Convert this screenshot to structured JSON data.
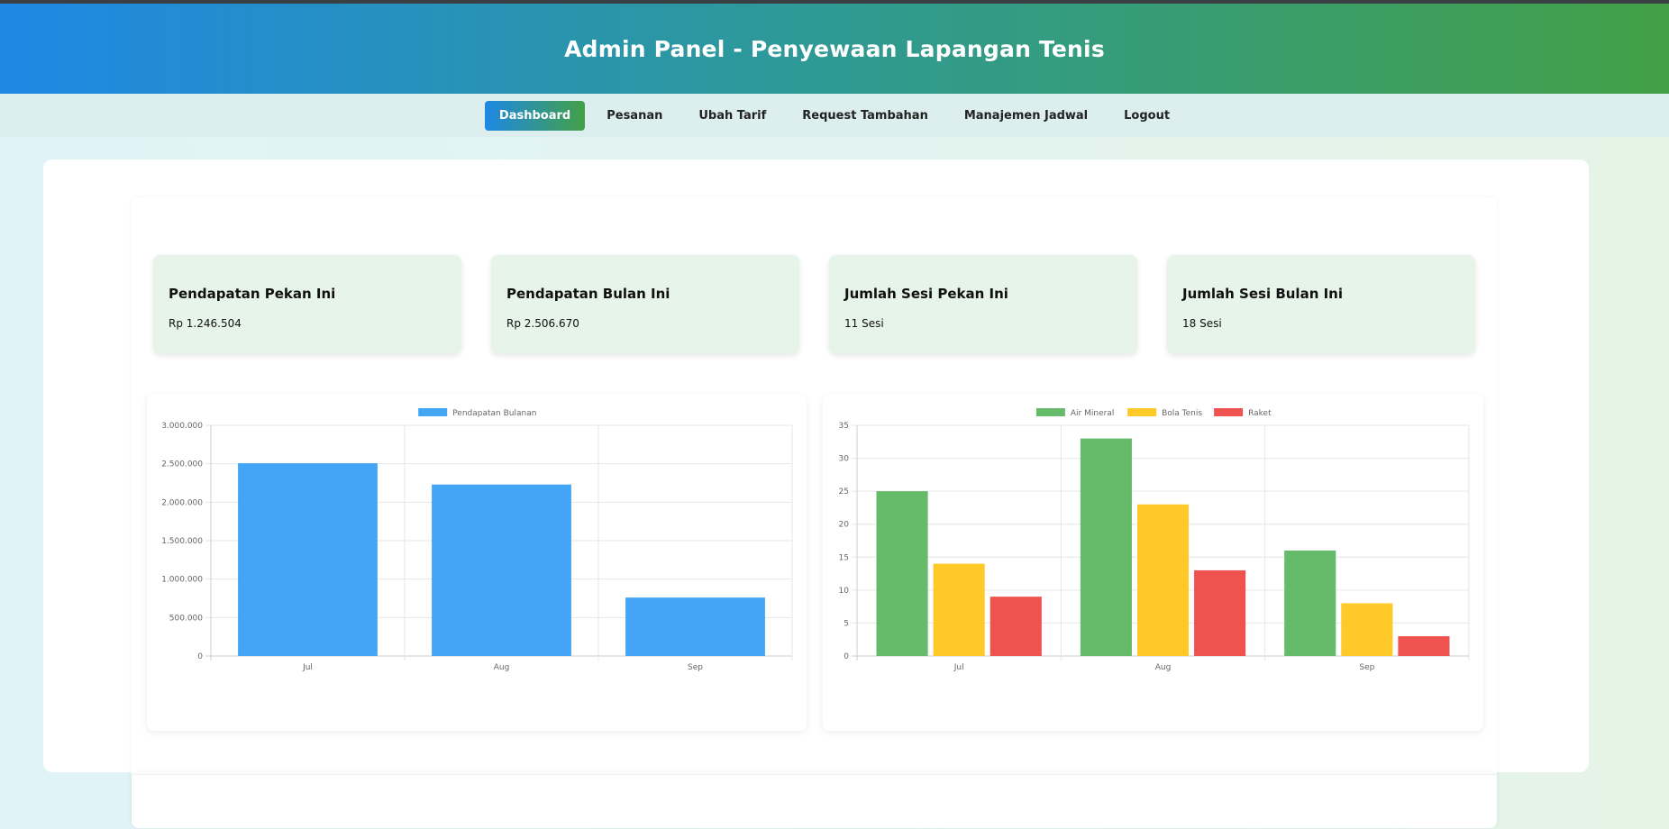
{
  "header": {
    "title": "Admin Panel - Penyewaan Lapangan Tenis"
  },
  "nav": {
    "items": [
      {
        "label": "Dashboard",
        "active": true
      },
      {
        "label": "Pesanan",
        "active": false
      },
      {
        "label": "Ubah Tarif",
        "active": false
      },
      {
        "label": "Request Tambahan",
        "active": false
      },
      {
        "label": "Manajemen Jadwal",
        "active": false
      },
      {
        "label": "Logout",
        "active": false
      }
    ]
  },
  "cards": [
    {
      "title": "Pendapatan Pekan Ini",
      "value": "Rp 1.246.504"
    },
    {
      "title": "Pendapatan Bulan Ini",
      "value": "Rp 2.506.670"
    },
    {
      "title": "Jumlah Sesi Pekan Ini",
      "value": "11 Sesi"
    },
    {
      "title": "Jumlah Sesi Bulan Ini",
      "value": "18 Sesi"
    }
  ],
  "colors": {
    "revenue": "#42a5f5",
    "air_mineral": "#66bb6a",
    "bola_tenis": "#ffca28",
    "raket": "#ef5350",
    "grid": "#e6e6e6",
    "axis": "#cccccc"
  },
  "chart_data": [
    {
      "type": "bar",
      "categories": [
        "Jul",
        "Aug",
        "Sep"
      ],
      "series": [
        {
          "name": "Pendapatan Bulanan",
          "values": [
            2506670,
            2230000,
            760000
          ]
        }
      ],
      "ylim": [
        0,
        3000000
      ],
      "yticks": [
        "0",
        "500.000",
        "1.000.000",
        "1.500.000",
        "2.000.000",
        "2.500.000",
        "3.000.000"
      ],
      "legend": "top-center",
      "grid": true
    },
    {
      "type": "bar",
      "categories": [
        "Jul",
        "Aug",
        "Sep"
      ],
      "series": [
        {
          "name": "Air Mineral",
          "values": [
            25,
            33,
            16
          ]
        },
        {
          "name": "Bola Tenis",
          "values": [
            14,
            23,
            8
          ]
        },
        {
          "name": "Raket",
          "values": [
            9,
            13,
            3
          ]
        }
      ],
      "ylim": [
        0,
        35
      ],
      "yticks": [
        "0",
        "5",
        "10",
        "15",
        "20",
        "25",
        "30",
        "35"
      ],
      "legend": "top-center",
      "grid": true
    }
  ]
}
